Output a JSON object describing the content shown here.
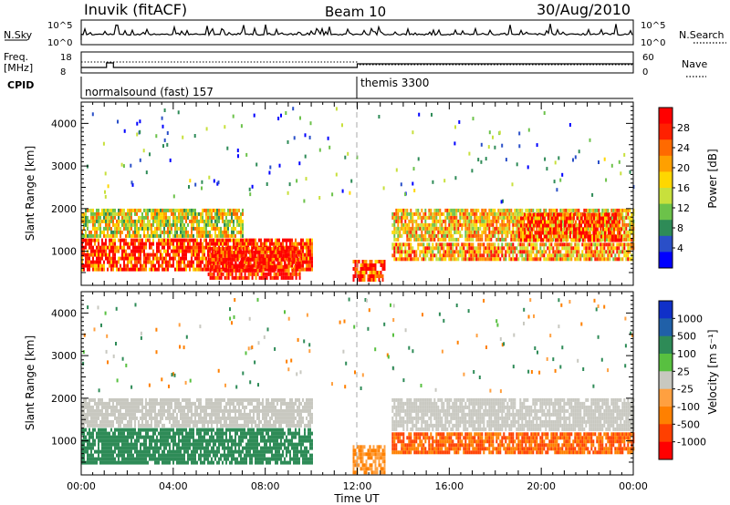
{
  "header": {
    "station": "Inuvik (fitACF)",
    "beam": "Beam 10",
    "date": "30/Aug/2010"
  },
  "top_panels": {
    "nsky_label": "N.Sky",
    "nsearch_label": "N.Search",
    "nsky_ticks": [
      "10^5",
      "10^0"
    ],
    "nsearch_ticks": [
      "10^5",
      "10^0"
    ],
    "freq_label_1": "Freq.",
    "freq_label_2": "[MHz]",
    "freq_ticks": [
      "18",
      "8"
    ],
    "nave_label": "Nave",
    "nave_ticks": [
      "60",
      "0"
    ],
    "cpid_label": "CPID",
    "cpid_segments": [
      {
        "name": "normalsound (fast) 157",
        "start_hour": 0,
        "end_hour": 12
      },
      {
        "name": "themis 3300",
        "start_hour": 12,
        "end_hour": 24
      }
    ]
  },
  "power_panel": {
    "ylabel": "Slant Range [km]",
    "yticks": [
      "4000",
      "3000",
      "2000",
      "1000"
    ],
    "colorbar_label": "Power [dB]",
    "colorbar_ticks": [
      "28",
      "24",
      "20",
      "16",
      "12",
      "8",
      "4"
    ],
    "colorbar_colors": [
      "#0000ff",
      "#2a4fc8",
      "#2e8b57",
      "#6cc24a",
      "#c8e03c",
      "#ffd700",
      "#ffa000",
      "#ff6a00",
      "#ff2000",
      "#ff0000"
    ]
  },
  "velocity_panel": {
    "ylabel": "Slant Range [km]",
    "yticks": [
      "4000",
      "3000",
      "2000",
      "1000"
    ],
    "colorbar_label": "Velocity [m s⁻¹]",
    "colorbar_ticks": [
      "1000",
      "500",
      "100",
      "25",
      "-25",
      "-100",
      "-500",
      "-1000"
    ],
    "colorbar_colors": [
      "#1030c8",
      "#2060a8",
      "#2e8b57",
      "#58c040",
      "#c8c8c0",
      "#ffa040",
      "#ff8000",
      "#ff4000",
      "#ff0000"
    ]
  },
  "xaxis": {
    "label": "Time UT",
    "ticks": [
      "00:00",
      "04:00",
      "08:00",
      "12:00",
      "16:00",
      "20:00",
      "00:00"
    ]
  },
  "chart_data": {
    "type": "heatmap",
    "title": "Inuvik (fitACF) Beam 10 30/Aug/2010",
    "xlabel": "Time UT",
    "ylabel": "Slant Range [km]",
    "xlim": [
      0,
      24
    ],
    "ylim": [
      200,
      4500
    ],
    "series": [
      {
        "name": "Power [dB]",
        "bands": [
          {
            "start_hour": 0.0,
            "end_hour": 10.0,
            "range_min": 600,
            "range_max": 1300,
            "value": 26
          },
          {
            "start_hour": 0.0,
            "end_hour": 7.0,
            "range_min": 1400,
            "range_max": 2000,
            "value": 16
          },
          {
            "start_hour": 5.5,
            "end_hour": 9.5,
            "range_min": 400,
            "range_max": 1100,
            "value": 28
          },
          {
            "start_hour": 11.8,
            "end_hour": 13.2,
            "range_min": 300,
            "range_max": 800,
            "value": 26
          },
          {
            "start_hour": 13.5,
            "end_hour": 24.0,
            "range_min": 800,
            "range_max": 1200,
            "value": 20
          },
          {
            "start_hour": 13.5,
            "end_hour": 24.0,
            "range_min": 1300,
            "range_max": 2000,
            "value": 18
          },
          {
            "start_hour": 19.0,
            "end_hour": 23.5,
            "range_min": 1300,
            "range_max": 1900,
            "value": 24
          }
        ]
      },
      {
        "name": "Velocity [m s⁻¹]",
        "bands": [
          {
            "start_hour": 0.0,
            "end_hour": 10.0,
            "range_min": 500,
            "range_max": 1300,
            "value": 100
          },
          {
            "start_hour": 0.0,
            "end_hour": 10.0,
            "range_min": 1400,
            "range_max": 2000,
            "value": 0
          },
          {
            "start_hour": 11.8,
            "end_hour": 13.2,
            "range_min": 300,
            "range_max": 900,
            "value": -100
          },
          {
            "start_hour": 13.5,
            "end_hour": 24.0,
            "range_min": 700,
            "range_max": 1200,
            "value": -300
          },
          {
            "start_hour": 13.5,
            "end_hour": 24.0,
            "range_min": 1300,
            "range_max": 2000,
            "value": 0
          }
        ]
      }
    ]
  }
}
